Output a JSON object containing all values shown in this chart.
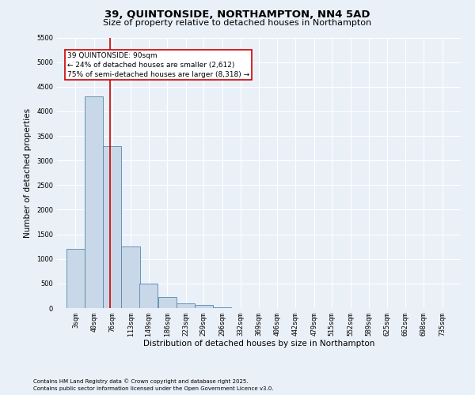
{
  "title": "39, QUINTONSIDE, NORTHAMPTON, NN4 5AD",
  "subtitle": "Size of property relative to detached houses in Northampton",
  "xlabel": "Distribution of detached houses by size in Northampton",
  "ylabel": "Number of detached properties",
  "footnote1": "Contains HM Land Registry data © Crown copyright and database right 2025.",
  "footnote2": "Contains public sector information licensed under the Open Government Licence v3.0.",
  "bar_color": "#c8d8e8",
  "bar_edge_color": "#5588aa",
  "vline_x": 90,
  "vline_color": "#cc0000",
  "annotation_line1": "39 QUINTONSIDE: 90sqm",
  "annotation_line2": "← 24% of detached houses are smaller (2,612)",
  "annotation_line3": "75% of semi-detached houses are larger (8,318) →",
  "annotation_box_color": "#cc0000",
  "categories": [
    "3sqm",
    "40sqm",
    "76sqm",
    "113sqm",
    "149sqm",
    "186sqm",
    "223sqm",
    "259sqm",
    "296sqm",
    "332sqm",
    "369sqm",
    "406sqm",
    "442sqm",
    "479sqm",
    "515sqm",
    "552sqm",
    "589sqm",
    "625sqm",
    "662sqm",
    "698sqm",
    "735sqm"
  ],
  "bin_edges": [
    3,
    40,
    76,
    113,
    149,
    186,
    223,
    259,
    296,
    332,
    369,
    406,
    442,
    479,
    515,
    552,
    589,
    625,
    662,
    698,
    735
  ],
  "bin_width": 37,
  "values": [
    1200,
    4300,
    3300,
    1250,
    500,
    220,
    100,
    60,
    10,
    5,
    3,
    2,
    1,
    1,
    0,
    0,
    0,
    0,
    0,
    0
  ],
  "ylim": [
    0,
    5500
  ],
  "yticks": [
    0,
    500,
    1000,
    1500,
    2000,
    2500,
    3000,
    3500,
    4000,
    4500,
    5000,
    5500
  ],
  "background_color": "#eaf0f8",
  "plot_bg_color": "#eaf0f8",
  "grid_color": "#ffffff",
  "title_fontsize": 9.5,
  "subtitle_fontsize": 8,
  "tick_fontsize": 6,
  "label_fontsize": 7.5,
  "annotation_fontsize": 6.5,
  "footnote_fontsize": 5
}
